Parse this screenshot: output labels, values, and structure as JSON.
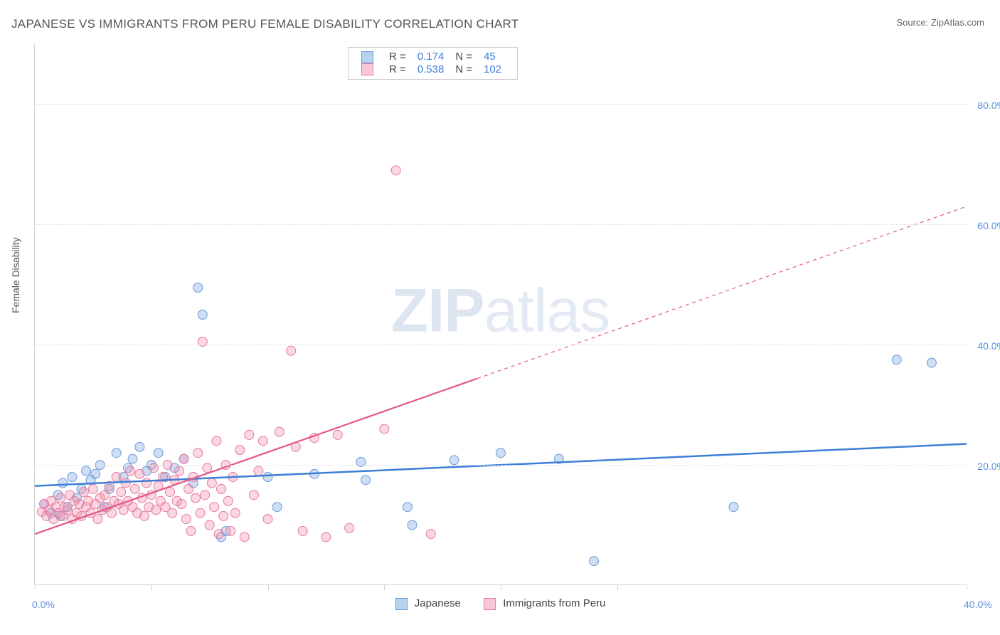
{
  "title": "JAPANESE VS IMMIGRANTS FROM PERU FEMALE DISABILITY CORRELATION CHART",
  "source": "Source: ZipAtlas.com",
  "watermark_bold": "ZIP",
  "watermark_light": "atlas",
  "ylabel": "Female Disability",
  "chart": {
    "type": "scatter",
    "xlim": [
      0,
      40
    ],
    "ylim": [
      0,
      90
    ],
    "x_ticks": [
      0,
      5,
      10,
      15,
      20,
      25,
      40
    ],
    "x_tick_labels": {
      "0": "0.0%",
      "40": "40.0%"
    },
    "y_gridlines": [
      20,
      40,
      60,
      80
    ],
    "y_tick_labels": {
      "20": "20.0%",
      "40": "40.0%",
      "60": "60.0%",
      "80": "80.0%"
    },
    "background_color": "#ffffff",
    "grid_color": "#e3e3e3",
    "axis_color": "#d2d2d2",
    "marker_radius": 6.5,
    "series": [
      {
        "name": "Japanese",
        "label": "Japanese",
        "marker_fill": "rgba(120,160,220,0.35)",
        "marker_stroke": "#6a9bdc",
        "swatch_fill": "#b9d1f0",
        "swatch_border": "#6a9bdc",
        "trend": {
          "x1": 0,
          "y1": 16.5,
          "x2": 40,
          "y2": 23.5,
          "solid_to_x": 40,
          "color": "#3d7fd6",
          "width": 2.5
        },
        "stats": {
          "R": "0.174",
          "N": "45"
        },
        "points": [
          [
            0.4,
            13.5
          ],
          [
            0.7,
            12
          ],
          [
            1.0,
            15
          ],
          [
            1.2,
            17
          ],
          [
            1.4,
            13
          ],
          [
            1.6,
            18
          ],
          [
            1.8,
            14.5
          ],
          [
            2.0,
            16
          ],
          [
            2.2,
            19
          ],
          [
            2.4,
            17.5
          ],
          [
            2.6,
            18.5
          ],
          [
            2.8,
            20
          ],
          [
            3.0,
            13
          ],
          [
            3.2,
            16
          ],
          [
            3.5,
            22
          ],
          [
            3.8,
            18
          ],
          [
            4.0,
            19.5
          ],
          [
            4.2,
            21
          ],
          [
            4.5,
            23
          ],
          [
            4.8,
            19
          ],
          [
            5.0,
            20
          ],
          [
            5.3,
            22
          ],
          [
            5.6,
            18
          ],
          [
            6.0,
            19.5
          ],
          [
            6.4,
            21
          ],
          [
            6.8,
            17
          ],
          [
            7.0,
            49.5
          ],
          [
            7.2,
            45
          ],
          [
            8.0,
            8
          ],
          [
            8.2,
            9
          ],
          [
            10.0,
            18
          ],
          [
            10.4,
            13
          ],
          [
            12.0,
            18.5
          ],
          [
            14.0,
            20.5
          ],
          [
            14.2,
            17.5
          ],
          [
            16.0,
            13
          ],
          [
            16.2,
            10
          ],
          [
            18.0,
            20.8
          ],
          [
            20.0,
            22
          ],
          [
            22.5,
            21
          ],
          [
            24.0,
            4
          ],
          [
            30.0,
            13
          ],
          [
            37.0,
            37.5
          ],
          [
            38.5,
            37
          ],
          [
            1.1,
            11.5
          ]
        ]
      },
      {
        "name": "Immigrants from Peru",
        "label": "Immigrants from Peru",
        "marker_fill": "rgba(240,140,170,0.35)",
        "marker_stroke": "#e77aa0",
        "swatch_fill": "#f8c8d8",
        "swatch_border": "#e77aa0",
        "trend": {
          "x1": 0,
          "y1": 8.5,
          "x2": 40,
          "y2": 63,
          "solid_to_x": 19,
          "color": "#e45780",
          "width": 2.2
        },
        "stats": {
          "R": "0.538",
          "N": "102"
        },
        "points": [
          [
            0.3,
            12.2
          ],
          [
            0.4,
            13.5
          ],
          [
            0.5,
            11.5
          ],
          [
            0.6,
            12.5
          ],
          [
            0.7,
            14
          ],
          [
            0.8,
            11
          ],
          [
            0.9,
            13
          ],
          [
            1.0,
            12
          ],
          [
            1.1,
            14.5
          ],
          [
            1.2,
            11.5
          ],
          [
            1.3,
            13
          ],
          [
            1.4,
            12.5
          ],
          [
            1.5,
            15
          ],
          [
            1.6,
            11
          ],
          [
            1.7,
            14
          ],
          [
            1.8,
            12
          ],
          [
            1.9,
            13.5
          ],
          [
            2.0,
            11.5
          ],
          [
            2.1,
            15.5
          ],
          [
            2.2,
            13
          ],
          [
            2.3,
            14
          ],
          [
            2.4,
            12
          ],
          [
            2.5,
            16
          ],
          [
            2.6,
            13.5
          ],
          [
            2.7,
            11
          ],
          [
            2.8,
            14.5
          ],
          [
            2.9,
            12.5
          ],
          [
            3.0,
            15
          ],
          [
            3.1,
            13
          ],
          [
            3.2,
            16.5
          ],
          [
            3.3,
            12
          ],
          [
            3.4,
            14
          ],
          [
            3.5,
            18
          ],
          [
            3.6,
            13.5
          ],
          [
            3.7,
            15.5
          ],
          [
            3.8,
            12.5
          ],
          [
            3.9,
            17
          ],
          [
            4.0,
            14
          ],
          [
            4.1,
            19
          ],
          [
            4.2,
            13
          ],
          [
            4.3,
            16
          ],
          [
            4.4,
            12
          ],
          [
            4.5,
            18.5
          ],
          [
            4.6,
            14.5
          ],
          [
            4.7,
            11.5
          ],
          [
            4.8,
            17
          ],
          [
            4.9,
            13
          ],
          [
            5.0,
            15
          ],
          [
            5.1,
            19.5
          ],
          [
            5.2,
            12.5
          ],
          [
            5.3,
            16.5
          ],
          [
            5.4,
            14
          ],
          [
            5.5,
            18
          ],
          [
            5.6,
            13
          ],
          [
            5.7,
            20
          ],
          [
            5.8,
            15.5
          ],
          [
            5.9,
            12
          ],
          [
            6.0,
            17.5
          ],
          [
            6.1,
            14
          ],
          [
            6.2,
            19
          ],
          [
            6.3,
            13.5
          ],
          [
            6.4,
            21
          ],
          [
            6.5,
            11
          ],
          [
            6.6,
            16
          ],
          [
            6.7,
            9
          ],
          [
            6.8,
            18
          ],
          [
            6.9,
            14.5
          ],
          [
            7.0,
            22
          ],
          [
            7.1,
            12
          ],
          [
            7.2,
            40.5
          ],
          [
            7.3,
            15
          ],
          [
            7.4,
            19.5
          ],
          [
            7.5,
            10
          ],
          [
            7.6,
            17
          ],
          [
            7.7,
            13
          ],
          [
            7.8,
            24
          ],
          [
            7.9,
            8.5
          ],
          [
            8.0,
            16
          ],
          [
            8.1,
            11.5
          ],
          [
            8.2,
            20
          ],
          [
            8.3,
            14
          ],
          [
            8.4,
            9
          ],
          [
            8.5,
            18
          ],
          [
            8.6,
            12
          ],
          [
            8.8,
            22.5
          ],
          [
            9.0,
            8
          ],
          [
            9.2,
            25
          ],
          [
            9.4,
            15
          ],
          [
            9.6,
            19
          ],
          [
            9.8,
            24
          ],
          [
            10.0,
            11
          ],
          [
            10.5,
            25.5
          ],
          [
            11.0,
            39
          ],
          [
            11.2,
            23
          ],
          [
            11.5,
            9
          ],
          [
            12.0,
            24.5
          ],
          [
            12.5,
            8
          ],
          [
            13.0,
            25
          ],
          [
            13.5,
            9.5
          ],
          [
            15.0,
            26
          ],
          [
            15.5,
            69
          ],
          [
            17.0,
            8.5
          ]
        ]
      }
    ]
  }
}
